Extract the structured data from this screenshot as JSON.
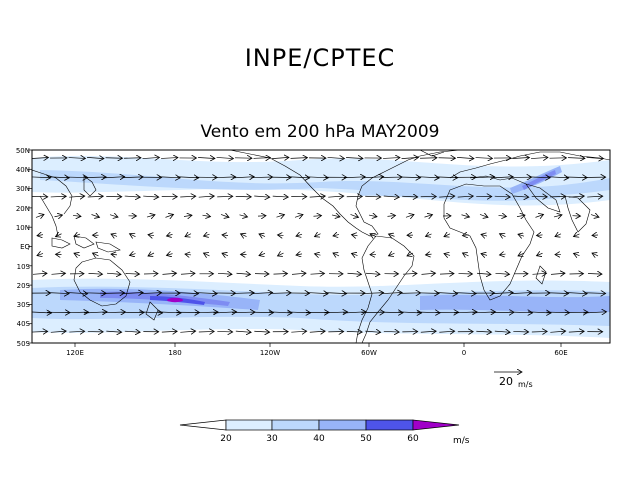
{
  "header": {
    "title": "INPE/CPTEC",
    "subtitle": "Vento em 200 hPa MAY2009"
  },
  "map": {
    "lat_ticks": [
      "50N",
      "40N",
      "30N",
      "20N",
      "10N",
      "EQ",
      "10S",
      "20S",
      "30S",
      "40S",
      "50S"
    ],
    "lon_ticks": [
      "120E",
      "180",
      "120W",
      "60W",
      "0",
      "60E"
    ],
    "lat_range": [
      -50,
      50
    ],
    "lon_range": [
      80,
      442
    ],
    "reference_vector": {
      "value": "20",
      "unit": "m/s"
    }
  },
  "colorbar": {
    "labels": [
      "20",
      "30",
      "40",
      "50",
      "60"
    ],
    "unit": "m/s",
    "colors": [
      "#ffffff",
      "#dceeff",
      "#bcd8fc",
      "#98b4f8",
      "#7e8cf2",
      "#4e54ea",
      "#a000c8"
    ]
  }
}
